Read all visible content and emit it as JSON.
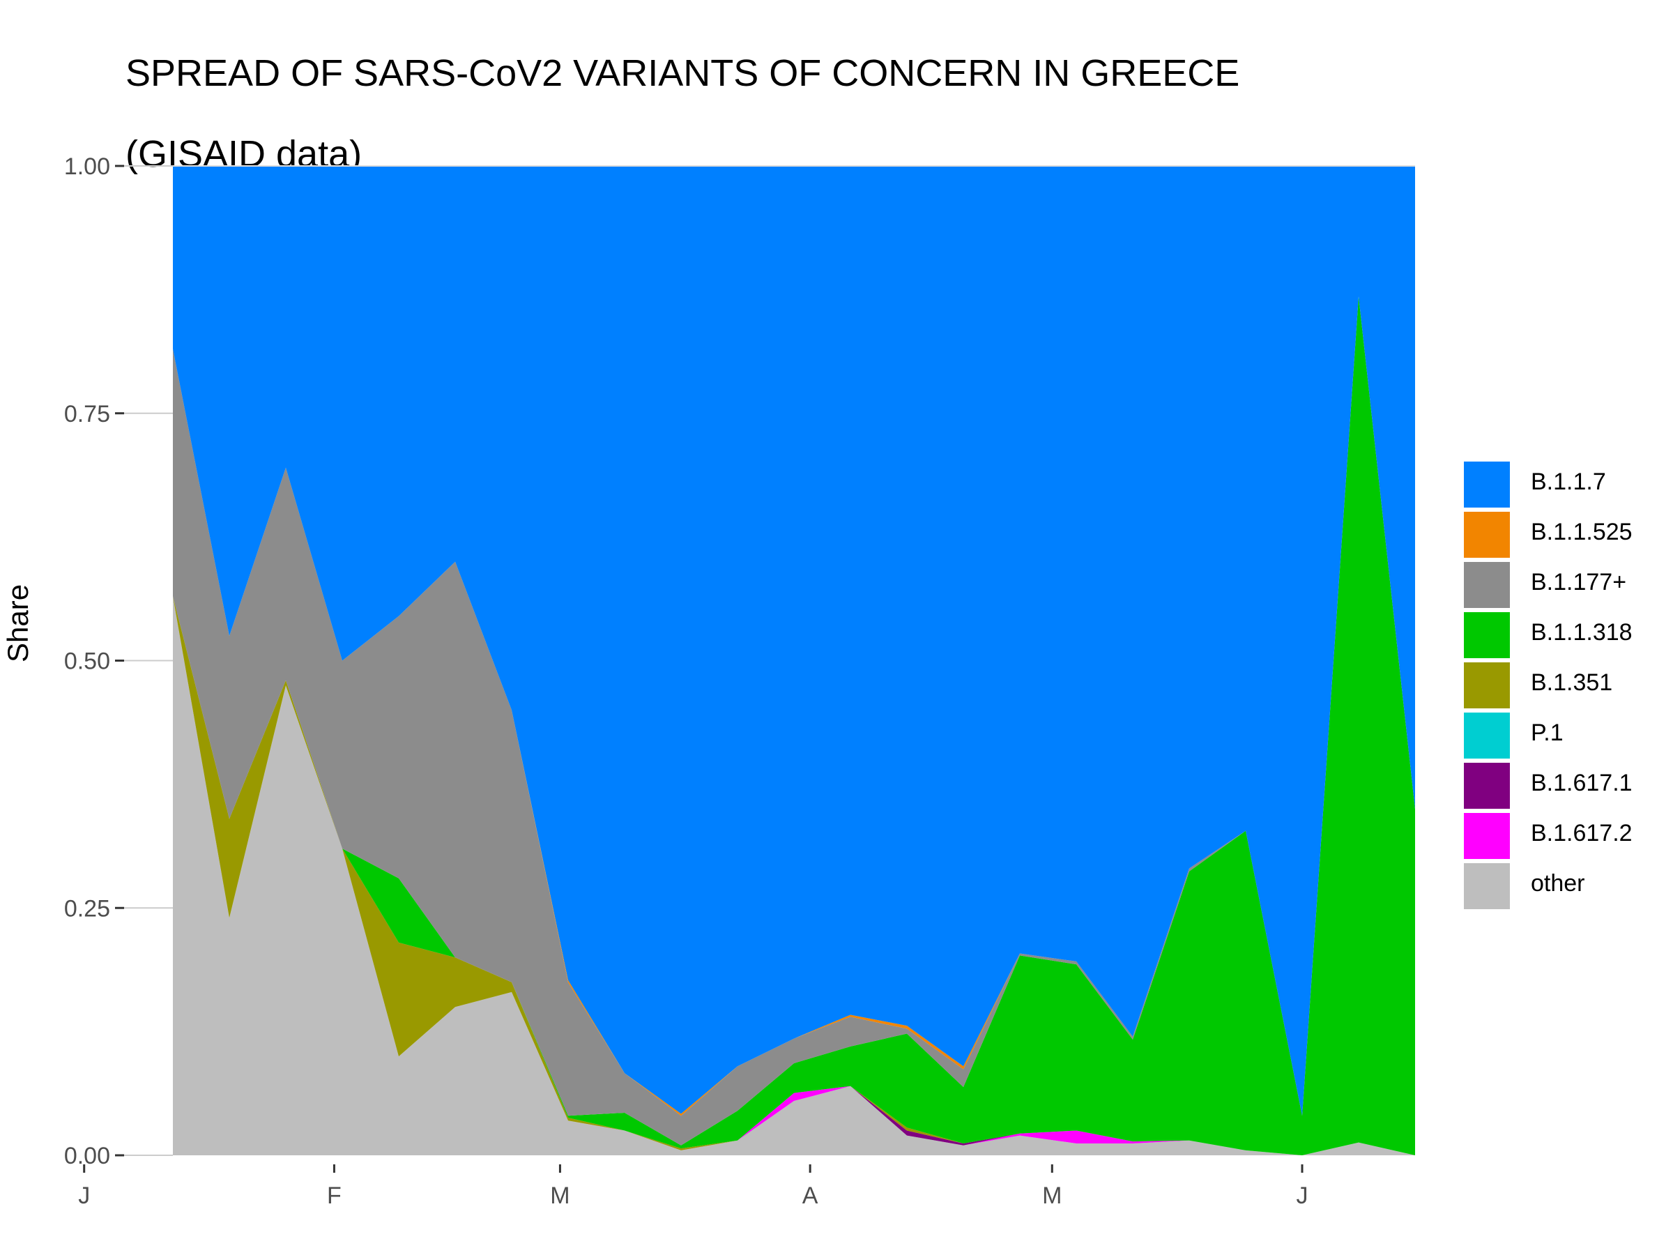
{
  "chart_data": {
    "type": "area",
    "stacked": true,
    "title": "SPREAD OF SARS-CoV2 VARIANTS OF CONCERN IN GREECE (GISAID data)",
    "title_lines": [
      "SPREAD OF SARS-CoV2 VARIANTS OF CONCERN IN GREECE",
      "(GISAID data)"
    ],
    "xlabel": "",
    "ylabel": "Share",
    "ylim": [
      0,
      1
    ],
    "y_ticks": [
      "0.00",
      "0.25",
      "0.50",
      "0.75",
      "1.00"
    ],
    "x_ticks": [
      "J",
      "F",
      "M",
      "A",
      "M",
      "J"
    ],
    "x": [
      "2021-01-12",
      "2021-01-19",
      "2021-01-26",
      "2021-02-02",
      "2021-02-09",
      "2021-02-16",
      "2021-02-23",
      "2021-03-02",
      "2021-03-09",
      "2021-03-16",
      "2021-03-23",
      "2021-03-30",
      "2021-04-06",
      "2021-04-13",
      "2021-04-20",
      "2021-04-27",
      "2021-05-04",
      "2021-05-11",
      "2021-05-18",
      "2021-05-25",
      "2021-06-01",
      "2021-06-08",
      "2021-06-15"
    ],
    "legend_position": "right",
    "grid": false,
    "panel_background": "#ffffff",
    "series": [
      {
        "name": "other",
        "color": "#bebebe",
        "values": [
          0.565,
          0.24,
          0.475,
          0.31,
          0.1,
          0.15,
          0.165,
          0.035,
          0.025,
          0.005,
          0.015,
          0.055,
          0.07,
          0.02,
          0.01,
          0.02,
          0.012,
          0.012,
          0.015,
          0.005,
          0.0,
          0.013,
          0.0
        ]
      },
      {
        "name": "B.1.617.2",
        "color": "#ff00ff",
        "values": [
          0,
          0,
          0,
          0,
          0,
          0,
          0,
          0,
          0,
          0,
          0,
          0.008,
          0,
          0,
          0,
          0.002,
          0.013,
          0.002,
          0,
          0,
          0,
          0,
          0
        ]
      },
      {
        "name": "B.1.617.1",
        "color": "#800080",
        "values": [
          0,
          0,
          0,
          0,
          0,
          0,
          0,
          0,
          0,
          0,
          0,
          0,
          0,
          0.005,
          0.002,
          0,
          0,
          0,
          0,
          0,
          0,
          0,
          0
        ]
      },
      {
        "name": "P.1",
        "color": "#00ced1",
        "values": [
          0,
          0,
          0,
          0,
          0,
          0,
          0,
          0,
          0,
          0,
          0,
          0,
          0,
          0,
          0,
          0,
          0,
          0,
          0,
          0,
          0,
          0,
          0
        ]
      },
      {
        "name": "B.1.351",
        "color": "#999900",
        "values": [
          0.0,
          0.1,
          0.005,
          0.0,
          0.115,
          0.05,
          0.01,
          0.003,
          0,
          0.002,
          0,
          0,
          0,
          0.003,
          0,
          0,
          0,
          0,
          0,
          0,
          0,
          0,
          0
        ]
      },
      {
        "name": "B.1.1.318",
        "color": "#00c800",
        "values": [
          0,
          0,
          0,
          0,
          0.065,
          0.0,
          0.0,
          0.002,
          0.018,
          0.003,
          0.03,
          0.03,
          0.04,
          0.095,
          0.057,
          0.18,
          0.168,
          0.103,
          0.272,
          0.323,
          0.04,
          0.855,
          0.35
        ]
      },
      {
        "name": "B.1.177+",
        "color": "#8c8c8c",
        "values": [
          0.25,
          0.185,
          0.215,
          0.19,
          0.265,
          0.4,
          0.275,
          0.135,
          0.04,
          0.03,
          0.045,
          0.025,
          0.03,
          0.005,
          0.018,
          0.002,
          0.003,
          0.003,
          0.003,
          0.0,
          0.0,
          0.0,
          0.0
        ]
      },
      {
        "name": "B.1.1.525",
        "color": "#f28500",
        "values": [
          0,
          0,
          0,
          0,
          0,
          0,
          0,
          0.002,
          0,
          0.002,
          0,
          0,
          0.002,
          0.003,
          0.003,
          0,
          0,
          0,
          0,
          0,
          0,
          0,
          0
        ]
      },
      {
        "name": "B.1.1.7",
        "color": "#0080ff",
        "values": [
          0.185,
          0.475,
          0.305,
          0.5,
          0.455,
          0.4,
          0.55,
          0.823,
          0.917,
          0.958,
          0.91,
          0.882,
          0.858,
          0.869,
          0.91,
          0.796,
          0.804,
          0.88,
          0.71,
          0.672,
          0.96,
          0.132,
          0.65
        ]
      }
    ],
    "legend_order": [
      "B.1.1.7",
      "B.1.1.525",
      "B.1.177+",
      "B.1.1.318",
      "B.1.351",
      "P.1",
      "B.1.617.1",
      "B.1.617.2",
      "other"
    ]
  }
}
